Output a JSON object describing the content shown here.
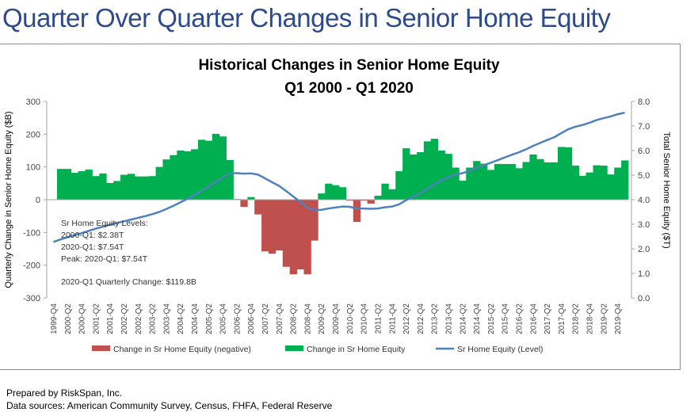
{
  "page_title": "Quarter Over Quarter Changes in Senior Home Equity",
  "footer": {
    "prepared_by": "Prepared by RiskSpan, Inc.",
    "sources": "Data sources: American Community Survey, Census, FHFA, Federal Reserve"
  },
  "colors": {
    "positive": "#00b050",
    "negative": "#c0504d",
    "level": "#4f81bd",
    "title": "#2c4a8c"
  },
  "chart_data": {
    "type": "bar",
    "title": "Historical Changes in Senior Home Equity",
    "subtitle": "Q1 2000 - Q1 2020",
    "ylabel": "Quarterly Change in Senior Home Equity ($B)",
    "y2label": "Total Senior Home Equity ($T)",
    "ylim": [
      -300,
      300
    ],
    "y2lim": [
      0,
      8
    ],
    "yticks": [
      "300",
      "200",
      "100",
      "0",
      "-100",
      "-200",
      "-300"
    ],
    "y2ticks": [
      "8.0",
      "7.0",
      "6.0",
      "5.0",
      "4.0",
      "3.0",
      "2.0",
      "1.0",
      "0.0"
    ],
    "xtick_labels": [
      "1999-Q4",
      "2000-Q2",
      "2000-Q4",
      "2001-Q2",
      "2001-Q4",
      "2002-Q2",
      "2002-Q4",
      "2003-Q2",
      "2003-Q4",
      "2004-Q2",
      "2004-Q4",
      "2005-Q2",
      "2005-Q4",
      "2006-Q2",
      "2006-Q4",
      "2007-Q2",
      "2007-Q4",
      "2008-Q2",
      "2008-Q4",
      "2009-Q2",
      "2009-Q4",
      "2010-Q2",
      "2010-Q4",
      "2011-Q2",
      "2011-Q4",
      "2012-Q2",
      "2012-Q4",
      "2013-Q2",
      "2013-Q4",
      "2014-Q2",
      "2014-Q4",
      "2015-Q2",
      "2015-Q4",
      "2016-Q2",
      "2016-Q4",
      "2017-Q2",
      "2017-Q4",
      "2018-Q2",
      "2018-Q4",
      "2019-Q2",
      "2019-Q4"
    ],
    "changes": [
      0,
      94,
      94,
      82,
      87,
      92,
      72,
      80,
      51,
      57,
      76,
      79,
      71,
      71,
      72,
      100,
      123,
      136,
      150,
      148,
      154,
      183,
      180,
      201,
      193,
      121,
      2,
      -22,
      8,
      -45,
      -158,
      -165,
      -155,
      -205,
      -228,
      -213,
      -228,
      -125,
      19,
      49,
      44,
      38,
      -3,
      -68,
      -3,
      -12,
      12,
      49,
      32,
      87,
      157,
      138,
      145,
      178,
      186,
      150,
      140,
      98,
      58,
      98,
      118,
      110,
      91,
      109,
      109,
      109,
      96,
      115,
      138,
      124,
      114,
      114,
      161,
      160,
      104,
      73,
      83,
      105,
      104,
      77,
      98,
      119.8
    ],
    "level": [
      2.28,
      2.38,
      2.47,
      2.56,
      2.64,
      2.73,
      2.82,
      2.9,
      2.98,
      3.05,
      3.12,
      3.19,
      3.26,
      3.33,
      3.41,
      3.5,
      3.62,
      3.75,
      3.89,
      4.04,
      4.19,
      4.36,
      4.54,
      4.72,
      4.91,
      5.07,
      5.08,
      5.06,
      5.07,
      5.02,
      4.87,
      4.71,
      4.56,
      4.35,
      4.13,
      3.91,
      3.69,
      3.57,
      3.59,
      3.64,
      3.68,
      3.72,
      3.71,
      3.64,
      3.64,
      3.63,
      3.64,
      3.69,
      3.72,
      3.81,
      3.98,
      4.12,
      4.26,
      4.44,
      4.63,
      4.78,
      4.92,
      5.02,
      5.08,
      5.18,
      5.3,
      5.41,
      5.5,
      5.61,
      5.72,
      5.83,
      5.93,
      6.05,
      6.19,
      6.31,
      6.43,
      6.54,
      6.71,
      6.87,
      6.97,
      7.04,
      7.13,
      7.24,
      7.32,
      7.39,
      7.48,
      7.54
    ],
    "legend": {
      "position": "bottom",
      "items": [
        "Change in Sr Home Equity (negative)",
        "Change in Sr Home Equity",
        "Sr Home Equity (Level)"
      ]
    },
    "annotations": {
      "levels_header": "Sr Home Equity Levels:",
      "start": "2000-Q1: $2.38T",
      "end": "2020-Q1: $7.54T",
      "peak": "Peak: 2020-Q1: $7.54T",
      "quarterly_change": "2020-Q1 Quarterly Change: $119.8B"
    }
  }
}
